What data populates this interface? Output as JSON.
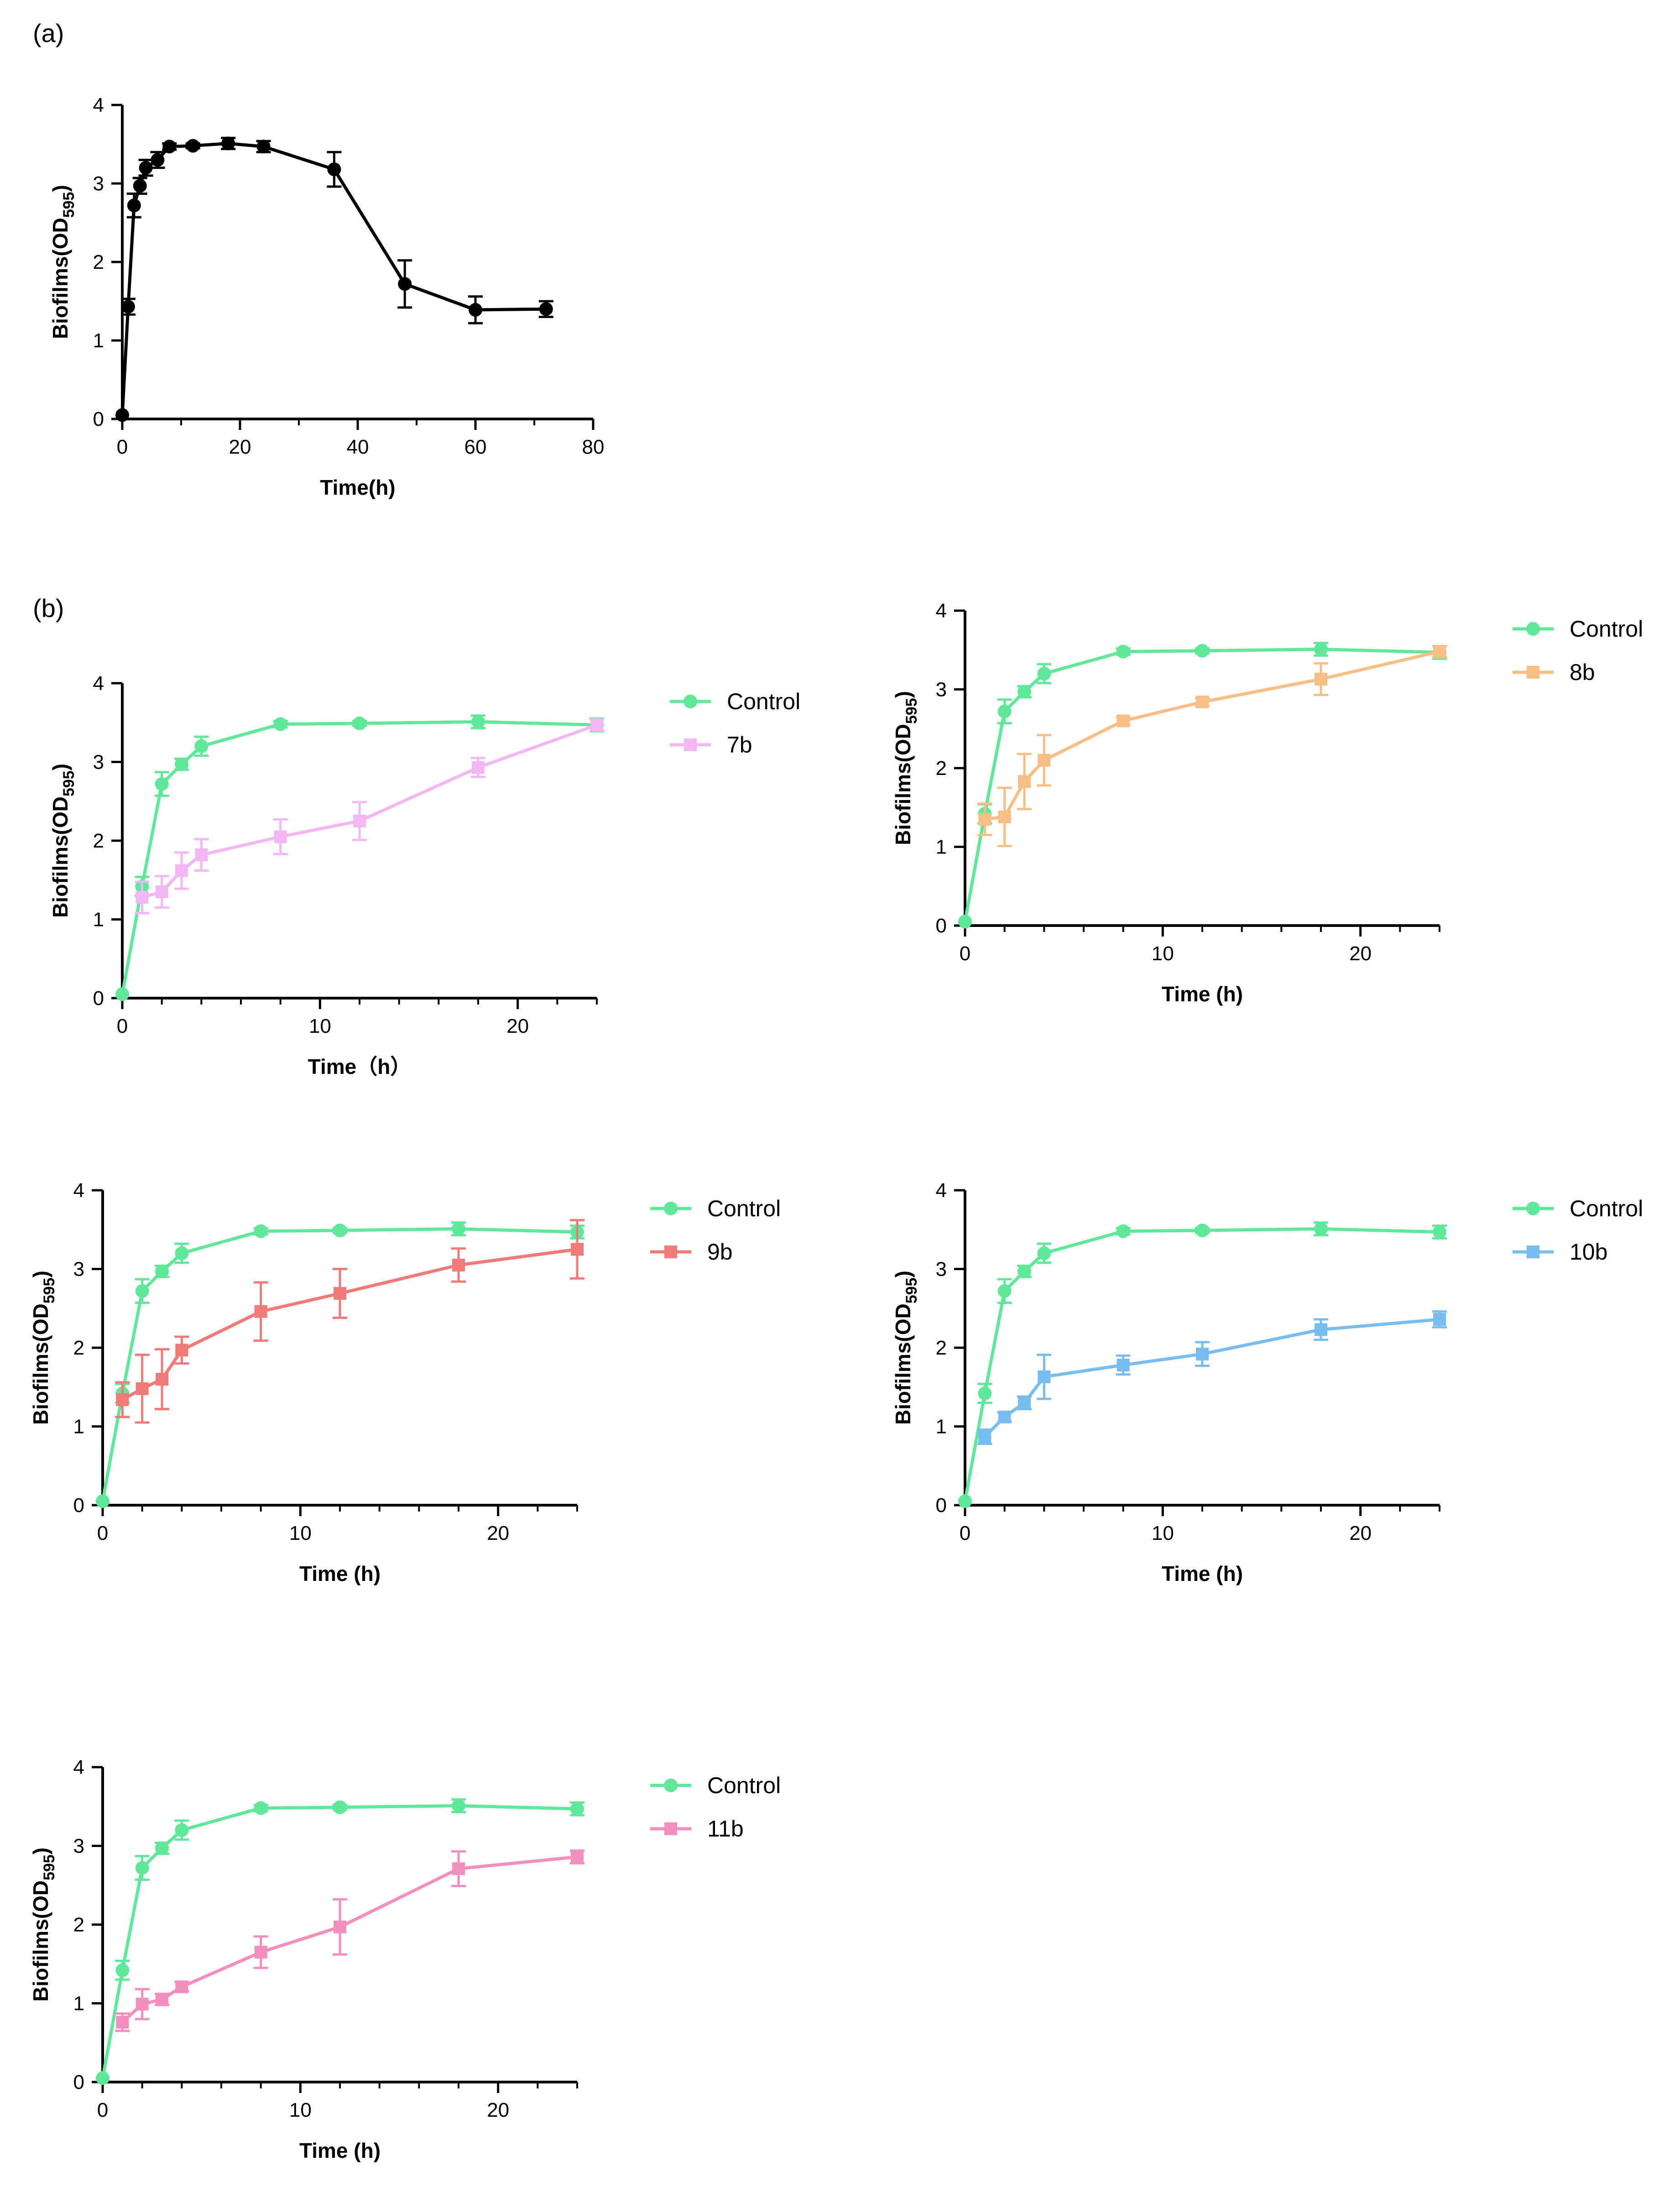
{
  "panel_labels": {
    "a": "(a)",
    "b": "(b)"
  },
  "colors": {
    "black": "#000000",
    "control": "#5fe89a",
    "7b": "#f3b8f3",
    "8b": "#f7bf86",
    "9b": "#f07a78",
    "10b": "#78bdf0",
    "11b": "#f38fbf"
  },
  "chart_data": [
    {
      "id": "a",
      "type": "line",
      "title": "",
      "xlabel": "Time(h)",
      "ylabel": "Biofilms(OD595)",
      "xlim": [
        0,
        80
      ],
      "ylim": [
        0,
        4
      ],
      "xticks": [
        0,
        20,
        40,
        60,
        80
      ],
      "yticks": [
        0,
        1,
        2,
        3,
        4
      ],
      "xminor": [
        10,
        30,
        50,
        70
      ],
      "series": [
        {
          "name": "",
          "color": "#000000",
          "marker": "circle",
          "x": [
            0,
            1,
            2,
            3,
            4,
            6,
            8,
            12,
            18,
            24,
            36,
            48,
            60,
            72
          ],
          "y": [
            0.05,
            1.43,
            2.72,
            2.97,
            3.2,
            3.3,
            3.47,
            3.48,
            3.51,
            3.47,
            3.18,
            1.72,
            1.39,
            1.4
          ],
          "err": [
            0,
            0.1,
            0.15,
            0.1,
            0.1,
            0.1,
            0.04,
            0.03,
            0.07,
            0.07,
            0.22,
            0.3,
            0.17,
            0.1
          ]
        }
      ]
    },
    {
      "id": "b-7b",
      "type": "line",
      "title": "",
      "xlabel": "Time（h）",
      "ylabel": "Biofilms(OD595)",
      "xlim": [
        0,
        24
      ],
      "ylim": [
        0,
        4
      ],
      "xticks": [
        0,
        10,
        20
      ],
      "yticks": [
        0,
        1,
        2,
        3,
        4
      ],
      "xminor": [
        2,
        4,
        6,
        8,
        12,
        14,
        16,
        18,
        22,
        24
      ],
      "series": [
        {
          "name": "Control",
          "color": "#5fe89a",
          "marker": "circle",
          "x": [
            0,
            1,
            2,
            3,
            4,
            8,
            12,
            18,
            24
          ],
          "y": [
            0.05,
            1.42,
            2.72,
            2.97,
            3.2,
            3.48,
            3.49,
            3.51,
            3.47
          ],
          "err": [
            0,
            0.12,
            0.15,
            0.07,
            0.12,
            0.04,
            0.03,
            0.08,
            0.08
          ]
        },
        {
          "name": "7b",
          "color": "#f3b8f3",
          "marker": "square",
          "x": [
            1,
            2,
            3,
            4,
            8,
            12,
            18,
            24
          ],
          "y": [
            1.28,
            1.35,
            1.62,
            1.82,
            2.05,
            2.25,
            2.93,
            3.47
          ],
          "err": [
            0.2,
            0.2,
            0.23,
            0.2,
            0.22,
            0.24,
            0.12,
            0.07
          ]
        }
      ]
    },
    {
      "id": "b-8b",
      "type": "line",
      "title": "",
      "xlabel": "Time (h)",
      "ylabel": "Biofilms(OD595)",
      "xlim": [
        0,
        24
      ],
      "ylim": [
        0,
        4
      ],
      "xticks": [
        0,
        10,
        20
      ],
      "yticks": [
        0,
        1,
        2,
        3,
        4
      ],
      "xminor": [
        2,
        4,
        6,
        8,
        12,
        14,
        16,
        18,
        22,
        24
      ],
      "series": [
        {
          "name": "Control",
          "color": "#5fe89a",
          "marker": "circle",
          "x": [
            0,
            1,
            2,
            3,
            4,
            8,
            12,
            18,
            24
          ],
          "y": [
            0.05,
            1.42,
            2.72,
            2.97,
            3.2,
            3.48,
            3.49,
            3.51,
            3.47
          ],
          "err": [
            0,
            0.12,
            0.15,
            0.07,
            0.12,
            0.04,
            0.03,
            0.08,
            0.08
          ]
        },
        {
          "name": "8b",
          "color": "#f7bf86",
          "marker": "square",
          "x": [
            1,
            2,
            3,
            4,
            8,
            12,
            18,
            24
          ],
          "y": [
            1.35,
            1.38,
            1.83,
            2.1,
            2.6,
            2.84,
            3.13,
            3.48
          ],
          "err": [
            0.2,
            0.37,
            0.35,
            0.32,
            0.05,
            0.05,
            0.2,
            0.07
          ]
        }
      ]
    },
    {
      "id": "b-9b",
      "type": "line",
      "title": "",
      "xlabel": "Time (h)",
      "ylabel": "Biofilms(OD595)",
      "xlim": [
        0,
        24
      ],
      "ylim": [
        0,
        4
      ],
      "xticks": [
        0,
        10,
        20
      ],
      "yticks": [
        0,
        1,
        2,
        3,
        4
      ],
      "xminor": [
        2,
        4,
        6,
        8,
        12,
        14,
        16,
        18,
        22,
        24
      ],
      "series": [
        {
          "name": "Control",
          "color": "#5fe89a",
          "marker": "circle",
          "x": [
            0,
            1,
            2,
            3,
            4,
            8,
            12,
            18,
            24
          ],
          "y": [
            0.05,
            1.42,
            2.72,
            2.97,
            3.2,
            3.48,
            3.49,
            3.51,
            3.47
          ],
          "err": [
            0,
            0.12,
            0.15,
            0.07,
            0.12,
            0.04,
            0.03,
            0.08,
            0.08
          ]
        },
        {
          "name": "9b",
          "color": "#f07a78",
          "marker": "square",
          "x": [
            1,
            2,
            3,
            4,
            8,
            12,
            18,
            24
          ],
          "y": [
            1.34,
            1.48,
            1.6,
            1.97,
            2.46,
            2.69,
            3.05,
            3.25
          ],
          "err": [
            0.22,
            0.43,
            0.38,
            0.17,
            0.37,
            0.31,
            0.21,
            0.37
          ]
        }
      ]
    },
    {
      "id": "b-10b",
      "type": "line",
      "title": "",
      "xlabel": "Time (h)",
      "ylabel": "Biofilms(OD595)",
      "xlim": [
        0,
        24
      ],
      "ylim": [
        0,
        4
      ],
      "xticks": [
        0,
        10,
        20
      ],
      "yticks": [
        0,
        1,
        2,
        3,
        4
      ],
      "xminor": [
        2,
        4,
        6,
        8,
        12,
        14,
        16,
        18,
        22,
        24
      ],
      "series": [
        {
          "name": "Control",
          "color": "#5fe89a",
          "marker": "circle",
          "x": [
            0,
            1,
            2,
            3,
            4,
            8,
            12,
            18,
            24
          ],
          "y": [
            0.05,
            1.42,
            2.72,
            2.97,
            3.2,
            3.48,
            3.49,
            3.51,
            3.47
          ],
          "err": [
            0,
            0.12,
            0.15,
            0.07,
            0.12,
            0.04,
            0.03,
            0.08,
            0.08
          ]
        },
        {
          "name": "10b",
          "color": "#78bdf0",
          "marker": "square",
          "x": [
            1,
            2,
            3,
            4,
            8,
            12,
            18,
            24
          ],
          "y": [
            0.87,
            1.12,
            1.3,
            1.63,
            1.78,
            1.92,
            2.23,
            2.36
          ],
          "err": [
            0.09,
            0.06,
            0.08,
            0.28,
            0.12,
            0.15,
            0.13,
            0.1
          ]
        }
      ]
    },
    {
      "id": "b-11b",
      "type": "line",
      "title": "",
      "xlabel": "Time (h)",
      "ylabel": "Biofilms(OD595)",
      "xlim": [
        0,
        24
      ],
      "ylim": [
        0,
        4
      ],
      "xticks": [
        0,
        10,
        20
      ],
      "yticks": [
        0,
        1,
        2,
        3,
        4
      ],
      "xminor": [
        2,
        4,
        6,
        8,
        12,
        14,
        16,
        18,
        22,
        24
      ],
      "series": [
        {
          "name": "Control",
          "color": "#5fe89a",
          "marker": "circle",
          "x": [
            0,
            1,
            2,
            3,
            4,
            8,
            12,
            18,
            24
          ],
          "y": [
            0.05,
            1.42,
            2.72,
            2.97,
            3.2,
            3.48,
            3.49,
            3.51,
            3.47
          ],
          "err": [
            0,
            0.12,
            0.15,
            0.07,
            0.12,
            0.04,
            0.03,
            0.08,
            0.08
          ]
        },
        {
          "name": "11b",
          "color": "#f38fbf",
          "marker": "square",
          "x": [
            1,
            2,
            3,
            4,
            8,
            12,
            18,
            24
          ],
          "y": [
            0.76,
            0.99,
            1.05,
            1.21,
            1.65,
            1.97,
            2.71,
            2.86
          ],
          "err": [
            0.11,
            0.19,
            0.07,
            0.06,
            0.2,
            0.35,
            0.22,
            0.08
          ]
        }
      ]
    }
  ]
}
